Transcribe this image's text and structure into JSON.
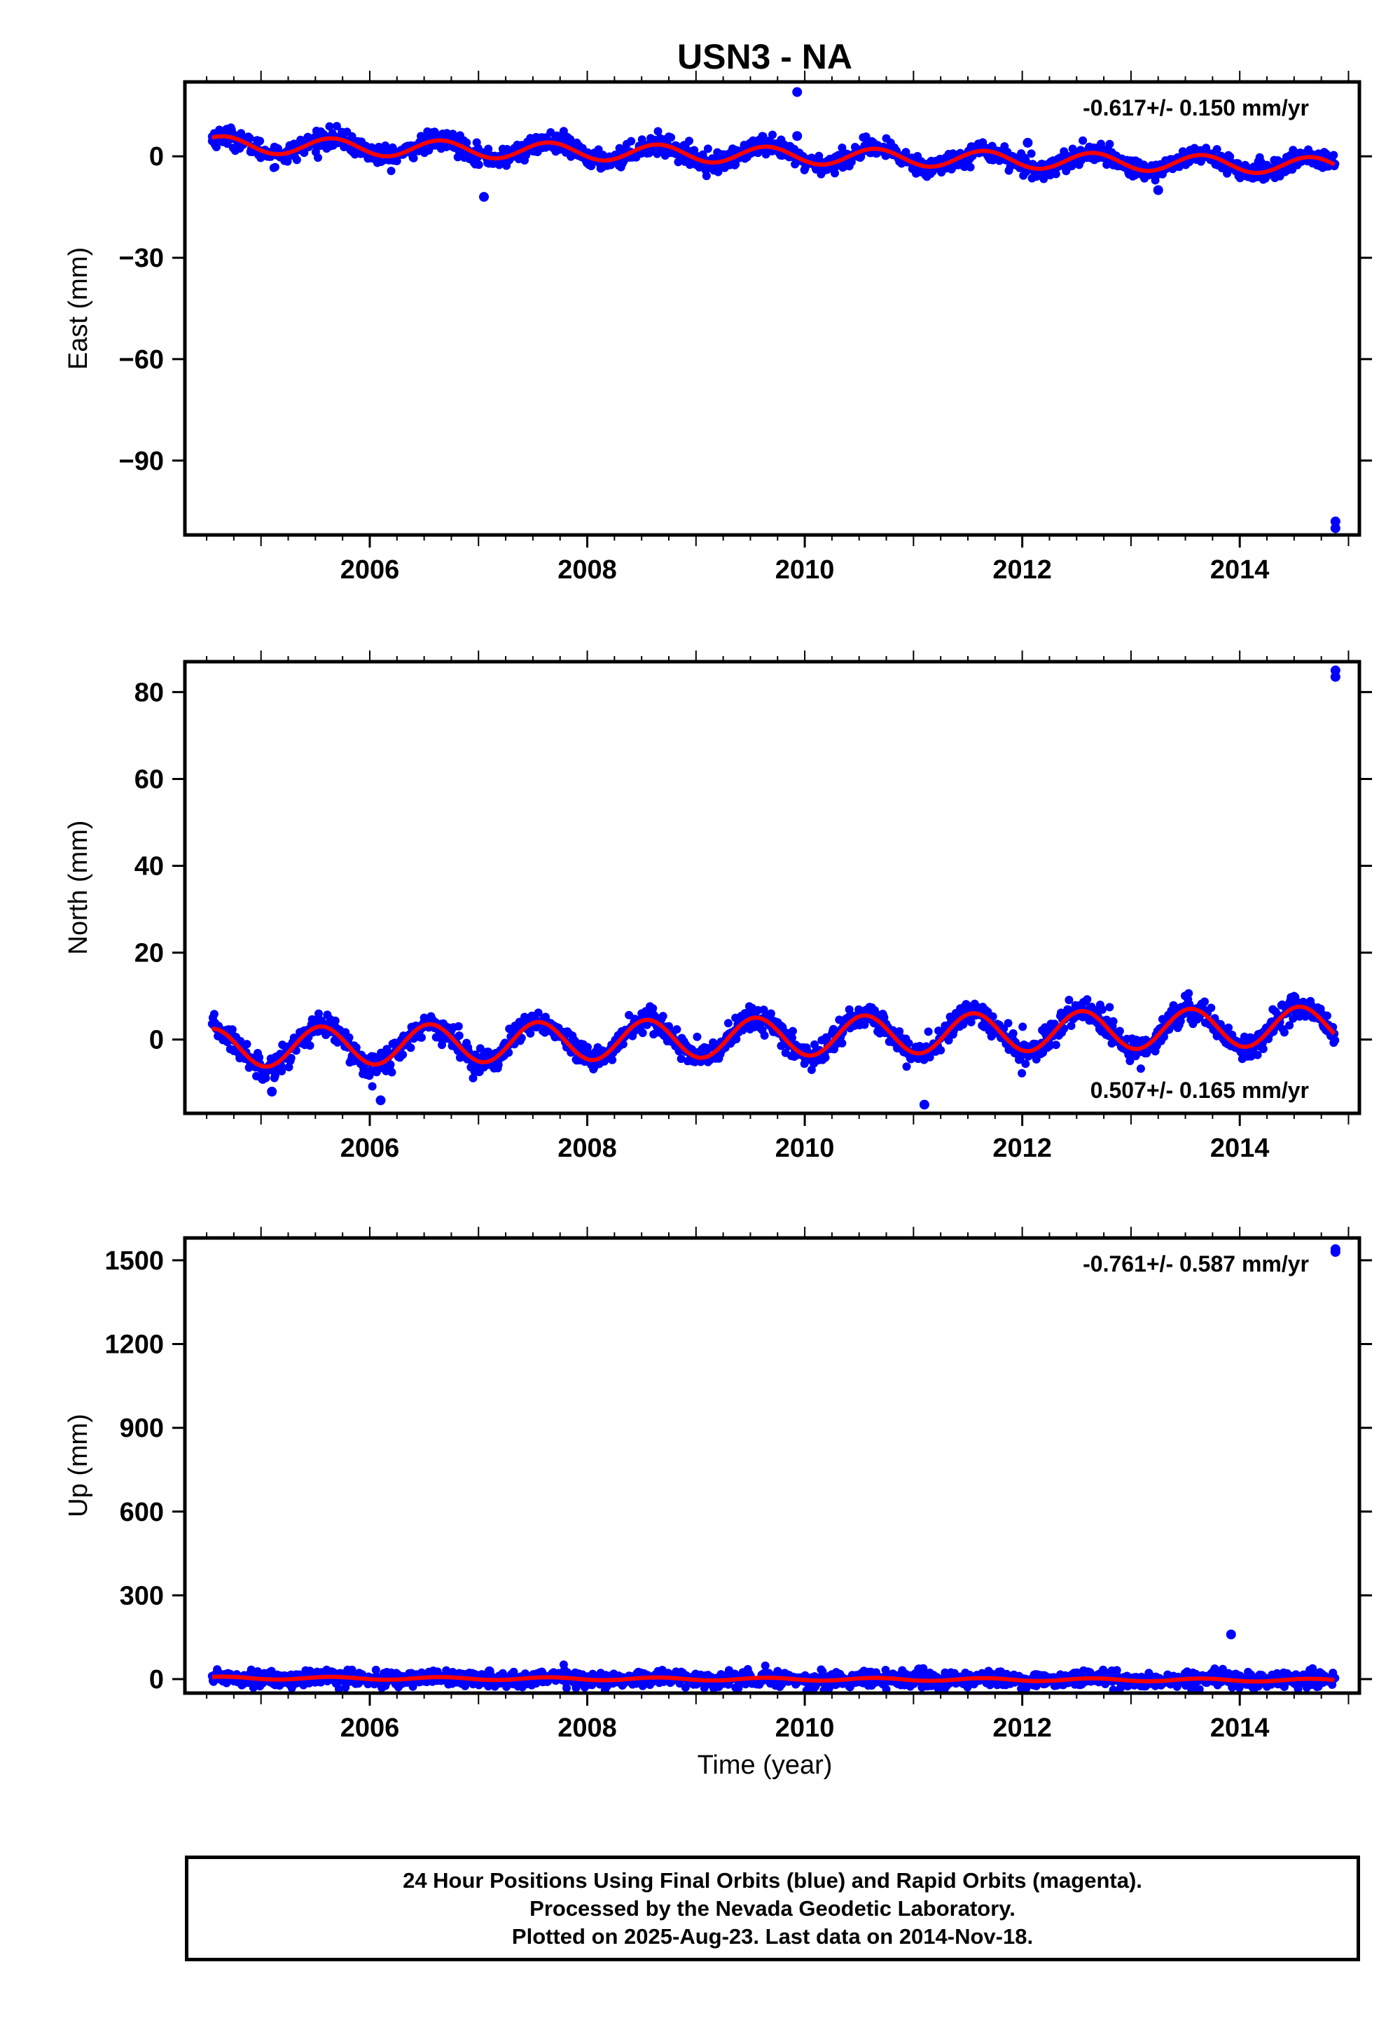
{
  "title": "USN3 - NA",
  "xlabel": "Time (year)",
  "footer": {
    "line1": "24 Hour Positions Using Final Orbits (blue) and Rapid Orbits (magenta).",
    "line2": "Processed by the Nevada Geodetic Laboratory.",
    "line3": "Plotted on 2025-Aug-23. Last data on 2014-Nov-18."
  },
  "colors": {
    "data": "#0000ff",
    "model": "#ff0000",
    "axis": "#000000"
  },
  "chart_data": [
    {
      "type": "scatter",
      "component": "east",
      "ylabel": "East (mm)",
      "xlim": [
        2004.3,
        2015.1
      ],
      "ylim": [
        -112,
        22
      ],
      "yticks": [
        0,
        -30,
        -60,
        -90
      ],
      "xticks": [
        2006,
        2008,
        2010,
        2012,
        2014
      ],
      "rate_label": "-0.617+/- 0.150 mm/yr",
      "rate_position": "top-right",
      "trend": {
        "y0": 3.5,
        "x0": 2004.55,
        "rate": -0.617,
        "annual_amplitude": 2.5,
        "annual_peak_phase": 0.65
      },
      "points": [
        [
          2004.55,
          4.5
        ],
        [
          2004.8,
          2.5
        ],
        [
          2005.1,
          0.5
        ],
        [
          2005.4,
          2.8
        ],
        [
          2005.7,
          4.0
        ],
        [
          2006.0,
          1.0
        ],
        [
          2006.3,
          1.5
        ],
        [
          2006.6,
          3.2
        ],
        [
          2006.9,
          2.0
        ],
        [
          2007.2,
          -1.0
        ],
        [
          2007.5,
          1.5
        ],
        [
          2007.8,
          2.5
        ],
        [
          2008.0,
          -1.0
        ],
        [
          2008.3,
          -0.5
        ],
        [
          2008.6,
          2.0
        ],
        [
          2008.9,
          0.5
        ],
        [
          2009.1,
          -2.0
        ],
        [
          2009.4,
          -0.5
        ],
        [
          2009.7,
          1.5
        ],
        [
          2010.0,
          -2.0
        ],
        [
          2010.3,
          -1.5
        ],
        [
          2010.6,
          1.0
        ],
        [
          2010.9,
          -1.5
        ],
        [
          2011.2,
          -3.0
        ],
        [
          2011.5,
          -1.5
        ],
        [
          2011.8,
          0.5
        ],
        [
          2012.1,
          -4.0
        ],
        [
          2012.4,
          -2.5
        ],
        [
          2012.7,
          -0.5
        ],
        [
          2013.0,
          -3.5
        ],
        [
          2013.3,
          -3.0
        ],
        [
          2013.6,
          -1.0
        ],
        [
          2013.9,
          -4.0
        ],
        [
          2014.2,
          -4.5
        ],
        [
          2014.5,
          -2.5
        ],
        [
          2014.8,
          -3.0
        ]
      ],
      "outliers": [
        [
          2009.93,
          19
        ],
        [
          2009.93,
          6
        ],
        [
          2007.05,
          -12
        ],
        [
          2013.25,
          -10
        ],
        [
          2012.05,
          4
        ],
        [
          2014.88,
          -108
        ],
        [
          2014.88,
          -110
        ]
      ]
    },
    {
      "type": "scatter",
      "component": "north",
      "ylabel": "North (mm)",
      "xlim": [
        2004.3,
        2015.1
      ],
      "ylim": [
        -17,
        87
      ],
      "yticks": [
        80,
        60,
        40,
        20,
        0
      ],
      "xticks": [
        2006,
        2008,
        2010,
        2012,
        2014
      ],
      "rate_label": "0.507+/- 0.165 mm/yr",
      "rate_position": "bottom-right",
      "trend": {
        "y0": -2.0,
        "x0": 2004.55,
        "rate": 0.507,
        "annual_amplitude": 4.5,
        "annual_peak_phase": 0.55
      },
      "points": [
        [
          2004.6,
          3.0
        ],
        [
          2004.85,
          -4.0
        ],
        [
          2005.1,
          -6.0
        ],
        [
          2005.5,
          4.5
        ],
        [
          2005.85,
          -5.0
        ],
        [
          2006.1,
          -6.0
        ],
        [
          2006.5,
          5.0
        ],
        [
          2006.85,
          -4.0
        ],
        [
          2007.1,
          -5.5
        ],
        [
          2007.5,
          4.5
        ],
        [
          2007.85,
          -3.0
        ],
        [
          2008.1,
          -4.5
        ],
        [
          2008.5,
          6.0
        ],
        [
          2008.85,
          -2.0
        ],
        [
          2009.1,
          -4.0
        ],
        [
          2009.5,
          6.5
        ],
        [
          2009.85,
          -1.5
        ],
        [
          2010.1,
          -3.0
        ],
        [
          2010.5,
          6.0
        ],
        [
          2010.85,
          -2.0
        ],
        [
          2011.1,
          -3.0
        ],
        [
          2011.5,
          6.0
        ],
        [
          2011.85,
          -1.0
        ],
        [
          2012.1,
          -2.5
        ],
        [
          2012.5,
          7.0
        ],
        [
          2012.85,
          0.0
        ],
        [
          2013.1,
          -2.0
        ],
        [
          2013.5,
          7.5
        ],
        [
          2013.85,
          0.0
        ],
        [
          2014.1,
          -1.0
        ],
        [
          2014.5,
          10.0
        ],
        [
          2014.8,
          2.0
        ]
      ],
      "outliers": [
        [
          2005.1,
          -12
        ],
        [
          2006.1,
          -14
        ],
        [
          2011.1,
          -15
        ],
        [
          2014.88,
          83.5
        ],
        [
          2014.88,
          85
        ]
      ]
    },
    {
      "type": "scatter",
      "component": "up",
      "ylabel": "Up (mm)",
      "xlim": [
        2004.3,
        2015.1
      ],
      "ylim": [
        -50,
        1580
      ],
      "yticks": [
        1500,
        1200,
        900,
        600,
        300,
        0
      ],
      "xticks": [
        2006,
        2008,
        2010,
        2012,
        2014
      ],
      "rate_label": "-0.761+/- 0.587 mm/yr",
      "rate_position": "top-right",
      "trend": {
        "y0": 4.0,
        "x0": 2004.55,
        "rate": -0.761,
        "annual_amplitude": 5.0,
        "annual_peak_phase": 0.65
      },
      "points": [
        [
          2004.6,
          8
        ],
        [
          2005.0,
          2
        ],
        [
          2005.5,
          10
        ],
        [
          2006.0,
          -2
        ],
        [
          2006.5,
          8
        ],
        [
          2007.0,
          0
        ],
        [
          2007.5,
          12
        ],
        [
          2008.0,
          -3
        ],
        [
          2008.5,
          8
        ],
        [
          2009.0,
          -2
        ],
        [
          2009.5,
          6
        ],
        [
          2010.0,
          -6
        ],
        [
          2010.5,
          6
        ],
        [
          2011.0,
          -4
        ],
        [
          2011.5,
          8
        ],
        [
          2012.0,
          -8
        ],
        [
          2012.5,
          6
        ],
        [
          2013.0,
          -6
        ],
        [
          2013.5,
          6
        ],
        [
          2014.0,
          -8
        ],
        [
          2014.5,
          4
        ],
        [
          2014.8,
          0
        ]
      ],
      "outliers": [
        [
          2013.92,
          160
        ],
        [
          2011.05,
          35
        ],
        [
          2007.1,
          28
        ],
        [
          2014.88,
          1530
        ],
        [
          2014.88,
          1540
        ]
      ]
    }
  ]
}
